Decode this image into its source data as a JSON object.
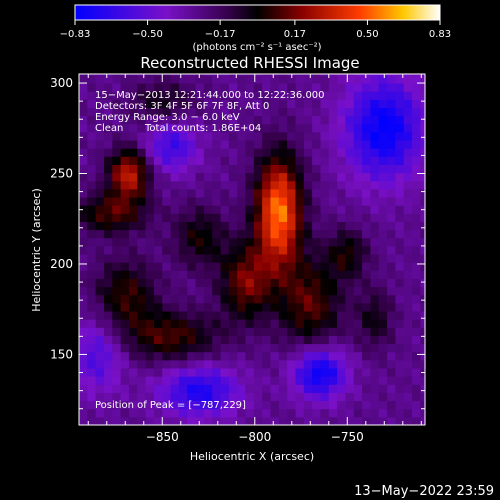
{
  "chart_data": {
    "type": "heatmap",
    "title": "Reconstructed RHESSI Image",
    "xlabel": "Heliocentric X (arcsec)",
    "ylabel": "Heliocentric Y (arcsec)",
    "xlim": [
      -895,
      -708
    ],
    "ylim": [
      111,
      305
    ],
    "x_ticks": [
      -850,
      -800,
      -750
    ],
    "y_ticks": [
      150,
      200,
      250,
      300
    ],
    "x_tick_labels": [
      "−850",
      "−800",
      "−750"
    ],
    "y_tick_labels": [
      "150",
      "200",
      "250",
      "300"
    ],
    "colorbar": {
      "min": -0.83,
      "max": 0.83,
      "tick_values": [
        -0.83,
        -0.5,
        -0.17,
        0.17,
        0.5,
        0.83
      ],
      "tick_labels": [
        "−0.83",
        "−0.50",
        "−0.17",
        "0.17",
        "0.50",
        "0.83"
      ],
      "units": "(photons cm⁻² s⁻¹ asec⁻²)"
    },
    "annotations": {
      "time": "15−May−2013 12:21:44.000 to 12:22:36.000",
      "detectors": "Detectors: 3F 4F 5F 6F 7F 8F, Att 0",
      "energy": "Energy Range: 3.0 − 6.0 keV",
      "algorithm": "Clean",
      "counts": "Total counts: 1.86E+04",
      "peak": "Position of Peak = [−787,229]"
    },
    "sources": [
      {
        "x": -787,
        "y": 229,
        "sigma_x": 9,
        "sigma_y": 22,
        "amp": 0.83
      },
      {
        "x": -868,
        "y": 250,
        "sigma_x": 8,
        "sigma_y": 10,
        "amp": 0.6
      },
      {
        "x": -878,
        "y": 228,
        "sigma_x": 14,
        "sigma_y": 8,
        "amp": 0.38
      },
      {
        "x": -830,
        "y": 215,
        "sigma_x": 10,
        "sigma_y": 12,
        "amp": 0.3
      },
      {
        "x": -805,
        "y": 190,
        "sigma_x": 10,
        "sigma_y": 15,
        "amp": 0.45
      },
      {
        "x": -770,
        "y": 178,
        "sigma_x": 12,
        "sigma_y": 18,
        "amp": 0.4
      },
      {
        "x": -845,
        "y": 160,
        "sigma_x": 18,
        "sigma_y": 10,
        "amp": 0.38
      },
      {
        "x": -870,
        "y": 183,
        "sigma_x": 12,
        "sigma_y": 14,
        "amp": 0.36
      },
      {
        "x": -750,
        "y": 206,
        "sigma_x": 8,
        "sigma_y": 10,
        "amp": 0.3
      },
      {
        "x": -735,
        "y": 170,
        "sigma_x": 7,
        "sigma_y": 12,
        "amp": 0.25
      },
      {
        "x": -850,
        "y": 290,
        "sigma_x": 12,
        "sigma_y": 8,
        "amp": 0.25
      },
      {
        "x": -765,
        "y": 140,
        "sigma_x": 10,
        "sigma_y": 10,
        "amp": -0.55
      },
      {
        "x": -830,
        "y": 130,
        "sigma_x": 15,
        "sigma_y": 10,
        "amp": -0.45
      },
      {
        "x": -730,
        "y": 275,
        "sigma_x": 15,
        "sigma_y": 20,
        "amp": -0.55
      },
      {
        "x": -885,
        "y": 150,
        "sigma_x": 10,
        "sigma_y": 15,
        "amp": -0.3
      },
      {
        "x": -845,
        "y": 265,
        "sigma_x": 10,
        "sigma_y": 10,
        "amp": -0.35
      }
    ]
  },
  "footer": {
    "timestamp": "13−May−2022 23:59"
  }
}
